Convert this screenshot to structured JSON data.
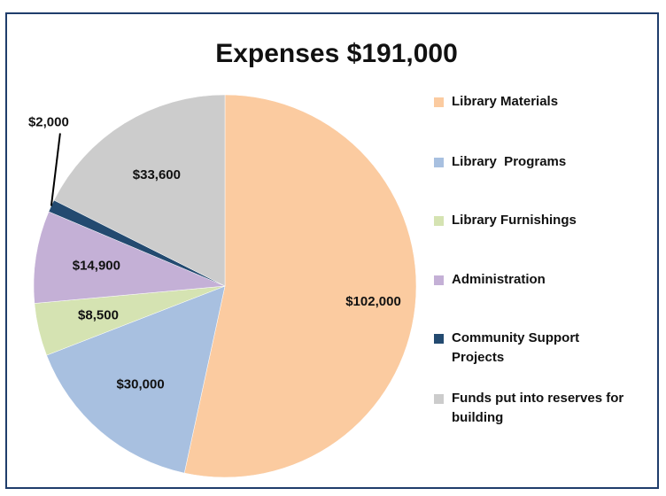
{
  "chart_data": {
    "type": "pie",
    "title": "Expenses $191,000",
    "categories": [
      "Library Materials",
      "Library  Programs",
      "Library Furnishings",
      "Administration",
      "Community Support Projects",
      "Funds put into reserves for building"
    ],
    "values": [
      102000,
      30000,
      8500,
      14900,
      2000,
      33600
    ],
    "value_labels": [
      "$102,000",
      "$30,000",
      "$8,500",
      "$14,900",
      "$2,000",
      "$33,600"
    ],
    "colors": [
      "#fbcba0",
      "#a8c0e0",
      "#d5e3b2",
      "#c4b0d6",
      "#234a70",
      "#cccccc"
    ],
    "legend": "right"
  }
}
